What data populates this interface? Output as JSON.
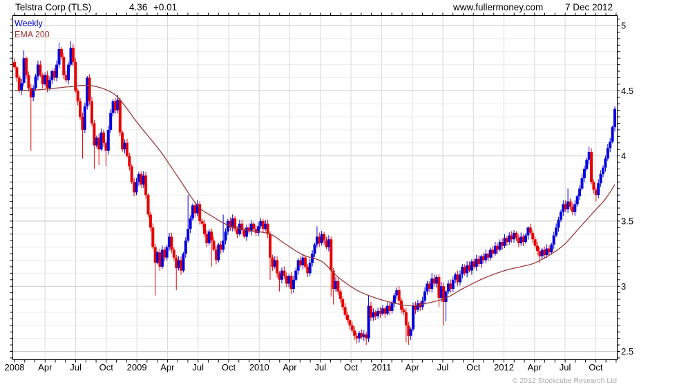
{
  "header": {
    "instrument": "Telstra Corp (TLS)",
    "price": "4.36",
    "change": "+0.01",
    "source": "www.fullermoney.com",
    "date": "7 Dec 2012"
  },
  "legend": {
    "series": "Weekly",
    "overlay": "EMA 200"
  },
  "footer": {
    "copyright": "© 2012 Stockcube Research Ltd"
  },
  "colors": {
    "up_candle": "#0000dd",
    "down_candle": "#e60000",
    "ema_line": "#993a3a",
    "legend_weekly_text": "#0000cc",
    "legend_ema_text": "#a03232",
    "change_text": "#0000cc",
    "grid_minor": "#ebebeb",
    "grid_major": "#c8c8c8",
    "grid_vertical": "#d9d9d9",
    "axis": "#000000",
    "copyright_text": "#a9a9a9"
  },
  "chart_data": {
    "type": "candlestick",
    "title": "Telstra Corp (TLS) 4.36 +0.01",
    "period": "weekly",
    "x_range": "Jan 2008 - 7 Dec 2012",
    "ylim": [
      2.44,
      5.08
    ],
    "grid": "on",
    "y_ticks": [
      {
        "v": 5.0,
        "label": "5"
      },
      {
        "v": 4.5,
        "label": "4.5"
      },
      {
        "v": 4.0,
        "label": "4"
      },
      {
        "v": 3.5,
        "label": "3.5"
      },
      {
        "v": 3.0,
        "label": "3"
      },
      {
        "v": 2.5,
        "label": "2.5"
      }
    ],
    "x_labels": [
      {
        "label": "2008",
        "month": 0
      },
      {
        "label": "Apr",
        "month": 3
      },
      {
        "label": "Jul",
        "month": 6
      },
      {
        "label": "Oct",
        "month": 9
      },
      {
        "label": "2009",
        "month": 12
      },
      {
        "label": "Apr",
        "month": 15
      },
      {
        "label": "Jul",
        "month": 18
      },
      {
        "label": "Oct",
        "month": 21
      },
      {
        "label": "2010",
        "month": 24
      },
      {
        "label": "Apr",
        "month": 27
      },
      {
        "label": "Jul",
        "month": 30
      },
      {
        "label": "Oct",
        "month": 33
      },
      {
        "label": "2011",
        "month": 36
      },
      {
        "label": "Apr",
        "month": 39
      },
      {
        "label": "Jul",
        "month": 42
      },
      {
        "label": "Oct",
        "month": 45
      },
      {
        "label": "2012",
        "month": 48
      },
      {
        "label": "Apr",
        "month": 51
      },
      {
        "label": "Jul",
        "month": 54
      },
      {
        "label": "Oct",
        "month": 57
      }
    ],
    "first_open": 4.72,
    "weekly_closes": [
      4.68,
      4.6,
      4.5,
      4.56,
      4.75,
      4.62,
      4.52,
      4.45,
      4.52,
      4.61,
      4.7,
      4.62,
      4.55,
      4.62,
      4.52,
      4.58,
      4.65,
      4.6,
      4.7,
      4.82,
      4.76,
      4.62,
      4.58,
      4.7,
      4.83,
      4.72,
      4.5,
      4.42,
      4.3,
      4.2,
      4.38,
      4.6,
      4.42,
      4.25,
      4.08,
      4.14,
      4.05,
      4.18,
      4.1,
      4.04,
      4.2,
      4.33,
      4.42,
      4.35,
      4.43,
      4.18,
      4.05,
      4.1,
      4.0,
      3.92,
      3.8,
      3.72,
      3.8,
      3.86,
      3.78,
      3.85,
      3.7,
      3.55,
      3.45,
      3.3,
      3.18,
      3.26,
      3.15,
      3.28,
      3.22,
      3.3,
      3.38,
      3.28,
      3.22,
      3.14,
      3.2,
      3.12,
      3.25,
      3.35,
      3.44,
      3.52,
      3.62,
      3.56,
      3.63,
      3.5,
      3.48,
      3.4,
      3.33,
      3.42,
      3.35,
      3.28,
      3.2,
      3.32,
      3.28,
      3.35,
      3.42,
      3.5,
      3.45,
      3.52,
      3.44,
      3.4,
      3.48,
      3.43,
      3.38,
      3.45,
      3.42,
      3.48,
      3.44,
      3.41,
      3.46,
      3.5,
      3.44,
      3.48,
      3.4,
      3.22,
      3.15,
      3.2,
      3.1,
      3.05,
      3.12,
      3.08,
      3.02,
      3.08,
      2.98,
      3.05,
      3.12,
      3.2,
      3.16,
      3.22,
      3.15,
      3.1,
      3.18,
      3.25,
      3.32,
      3.38,
      3.33,
      3.4,
      3.35,
      3.3,
      3.36,
      3.12,
      2.98,
      3.04,
      2.96,
      2.9,
      2.84,
      2.78,
      2.74,
      2.7,
      2.66,
      2.62,
      2.6,
      2.64,
      2.61,
      2.63,
      2.6,
      2.85,
      2.76,
      2.8,
      2.77,
      2.81,
      2.79,
      2.83,
      2.79,
      2.85,
      2.81,
      2.87,
      2.93,
      2.97,
      2.89,
      2.82,
      2.8,
      2.7,
      2.62,
      2.67,
      2.85,
      2.82,
      2.87,
      2.84,
      2.89,
      2.96,
      3.02,
      2.98,
      3.06,
      3.02,
      3.07,
      2.91,
      3.0,
      2.88,
      2.96,
      3.02,
      2.98,
      3.05,
      3.09,
      3.03,
      3.09,
      3.15,
      3.1,
      3.16,
      3.12,
      3.19,
      3.15,
      3.21,
      3.17,
      3.23,
      3.2,
      3.25,
      3.22,
      3.28,
      3.25,
      3.31,
      3.28,
      3.34,
      3.31,
      3.37,
      3.34,
      3.39,
      3.36,
      3.41,
      3.37,
      3.33,
      3.38,
      3.34,
      3.39,
      3.45,
      3.41,
      3.36,
      3.31,
      3.27,
      3.23,
      3.28,
      3.24,
      3.29,
      3.26,
      3.32,
      3.39,
      3.45,
      3.51,
      3.57,
      3.63,
      3.59,
      3.65,
      3.61,
      3.57,
      3.63,
      3.69,
      3.75,
      3.83,
      3.9,
      3.97,
      4.03,
      3.8,
      3.74,
      3.7,
      3.79,
      3.86,
      3.91,
      3.98,
      4.06,
      4.11,
      4.22,
      4.36
    ],
    "wick_overrides": {
      "4": [
        4.81,
        null
      ],
      "7": [
        null,
        4.04
      ],
      "19": [
        4.87,
        null
      ],
      "24": [
        4.88,
        null
      ],
      "29": [
        null,
        3.98
      ],
      "34": [
        null,
        3.9
      ],
      "36": [
        null,
        3.93
      ],
      "39": [
        null,
        3.92
      ],
      "44": [
        4.47,
        null
      ],
      "45": [
        4.45,
        null
      ],
      "60": [
        null,
        2.93
      ],
      "69": [
        null,
        2.97
      ],
      "74": [
        3.7,
        null
      ],
      "84": [
        null,
        3.15
      ],
      "89": [
        3.55,
        null
      ],
      "109": [
        null,
        3.05
      ],
      "113": [
        null,
        2.96
      ],
      "118": [
        null,
        2.94
      ],
      "129": [
        3.46,
        null
      ],
      "135": [
        null,
        2.92
      ],
      "136": [
        null,
        2.86
      ],
      "146": [
        null,
        2.56
      ],
      "150": [
        null,
        2.55
      ],
      "151": [
        2.93,
        null
      ],
      "163": [
        2.99,
        null
      ],
      "167": [
        null,
        2.57
      ],
      "168": [
        null,
        2.55
      ],
      "178": [
        3.1,
        null
      ],
      "181": [
        null,
        2.84
      ],
      "183": [
        null,
        2.7
      ],
      "184": [
        null,
        2.73
      ],
      "213": [
        3.43,
        null
      ],
      "219": [
        3.46,
        null
      ],
      "224": [
        null,
        3.18
      ],
      "236": [
        3.75,
        null
      ],
      "245": [
        4.07,
        null
      ],
      "246": [
        4.06,
        null
      ],
      "248": [
        null,
        3.65
      ],
      "256": [
        4.38,
        null
      ]
    },
    "ema_200_anchors": [
      [
        0,
        4.5
      ],
      [
        12,
        4.51
      ],
      [
        23,
        4.53
      ],
      [
        32,
        4.54
      ],
      [
        40,
        4.5
      ],
      [
        45,
        4.43
      ],
      [
        53,
        4.24
      ],
      [
        62,
        4.04
      ],
      [
        70,
        3.83
      ],
      [
        78,
        3.62
      ],
      [
        84,
        3.54
      ],
      [
        91,
        3.47
      ],
      [
        100,
        3.43
      ],
      [
        109,
        3.4
      ],
      [
        115,
        3.33
      ],
      [
        123,
        3.24
      ],
      [
        131,
        3.19
      ],
      [
        138,
        3.07
      ],
      [
        146,
        2.97
      ],
      [
        154,
        2.91
      ],
      [
        162,
        2.87
      ],
      [
        169,
        2.85
      ],
      [
        176,
        2.87
      ],
      [
        184,
        2.91
      ],
      [
        191,
        2.98
      ],
      [
        200,
        3.06
      ],
      [
        209,
        3.12
      ],
      [
        216,
        3.15
      ],
      [
        222,
        3.18
      ],
      [
        230,
        3.26
      ],
      [
        235,
        3.33
      ],
      [
        241,
        3.45
      ],
      [
        247,
        3.57
      ],
      [
        252,
        3.67
      ],
      [
        256,
        3.78
      ]
    ]
  }
}
